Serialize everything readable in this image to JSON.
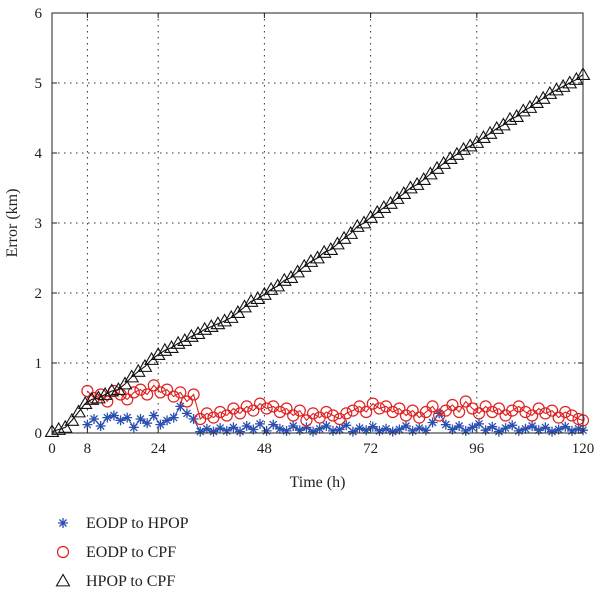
{
  "chart_data": {
    "type": "line",
    "title": "",
    "xlabel": "Time (h)",
    "ylabel": "Error (km)",
    "xlim": [
      0,
      120
    ],
    "ylim": [
      0,
      6
    ],
    "xticks": [
      0,
      8,
      24,
      48,
      72,
      96,
      120
    ],
    "yticks": [
      0,
      1,
      2,
      3,
      4,
      5,
      6
    ],
    "grid": true,
    "legend_placement": "below-left",
    "series": [
      {
        "name": "EODP to HPOP",
        "color": "#2b4fb0",
        "marker": "asterisk",
        "x": [
          8,
          9.5,
          11,
          12.5,
          14,
          15.5,
          17,
          18.5,
          20,
          21.5,
          23,
          24.5,
          26,
          27.5,
          29,
          30.5,
          32,
          33.5,
          35,
          36.5,
          38,
          39.5,
          41,
          42.5,
          44,
          45.5,
          47,
          48.5,
          50,
          51.5,
          53,
          54.5,
          56,
          57.5,
          59,
          60.5,
          62,
          63.5,
          65,
          66.5,
          68,
          69.5,
          71,
          72.5,
          74,
          75.5,
          77,
          78.5,
          80,
          81.5,
          83,
          84.5,
          86,
          87.5,
          89,
          90.5,
          92,
          93.5,
          95,
          96.5,
          98,
          99.5,
          101,
          102.5,
          104,
          105.5,
          107,
          108.5,
          110,
          111.5,
          113,
          114.5,
          116,
          117.5,
          119,
          120
        ],
        "y": [
          0.12,
          0.2,
          0.1,
          0.22,
          0.25,
          0.18,
          0.22,
          0.08,
          0.2,
          0.14,
          0.25,
          0.12,
          0.18,
          0.22,
          0.38,
          0.28,
          0.2,
          0.02,
          0.06,
          0.02,
          0.07,
          0.03,
          0.08,
          0.02,
          0.1,
          0.05,
          0.13,
          0.03,
          0.12,
          0.06,
          0.03,
          0.1,
          0.04,
          0.08,
          0.02,
          0.06,
          0.1,
          0.03,
          0.05,
          0.11,
          0.02,
          0.07,
          0.04,
          0.09,
          0.03,
          0.06,
          0.02,
          0.05,
          0.1,
          0.03,
          0.07,
          0.04,
          0.15,
          0.28,
          0.12,
          0.05,
          0.1,
          0.03,
          0.08,
          0.13,
          0.04,
          0.09,
          0.02,
          0.07,
          0.11,
          0.03,
          0.06,
          0.1,
          0.04,
          0.08,
          0.02,
          0.05,
          0.09,
          0.03,
          0.06,
          0.04
        ]
      },
      {
        "name": "EODP to CPF",
        "color": "#e02020",
        "marker": "circle",
        "x": [
          8,
          9.5,
          11,
          12.5,
          14,
          15.5,
          17,
          18.5,
          20,
          21.5,
          23,
          24.5,
          26,
          27.5,
          29,
          30.5,
          32,
          33.5,
          35,
          36.5,
          38,
          39.5,
          41,
          42.5,
          44,
          45.5,
          47,
          48.5,
          50,
          51.5,
          53,
          54.5,
          56,
          57.5,
          59,
          60.5,
          62,
          63.5,
          65,
          66.5,
          68,
          69.5,
          71,
          72.5,
          74,
          75.5,
          77,
          78.5,
          80,
          81.5,
          83,
          84.5,
          86,
          87.5,
          89,
          90.5,
          92,
          93.5,
          95,
          96.5,
          98,
          99.5,
          101,
          102.5,
          104,
          105.5,
          107,
          108.5,
          110,
          111.5,
          113,
          114.5,
          116,
          117.5,
          119,
          120
        ],
        "y": [
          0.6,
          0.5,
          0.55,
          0.45,
          0.6,
          0.55,
          0.48,
          0.58,
          0.62,
          0.55,
          0.68,
          0.58,
          0.62,
          0.52,
          0.58,
          0.45,
          0.55,
          0.2,
          0.28,
          0.22,
          0.3,
          0.25,
          0.35,
          0.28,
          0.38,
          0.32,
          0.42,
          0.35,
          0.38,
          0.3,
          0.35,
          0.25,
          0.32,
          0.18,
          0.28,
          0.22,
          0.3,
          0.25,
          0.2,
          0.28,
          0.32,
          0.38,
          0.3,
          0.42,
          0.35,
          0.38,
          0.3,
          0.35,
          0.25,
          0.32,
          0.22,
          0.3,
          0.38,
          0.25,
          0.32,
          0.4,
          0.3,
          0.45,
          0.35,
          0.28,
          0.38,
          0.3,
          0.35,
          0.25,
          0.32,
          0.38,
          0.3,
          0.25,
          0.35,
          0.28,
          0.32,
          0.22,
          0.3,
          0.25,
          0.2,
          0.18
        ]
      },
      {
        "name": "HPOP to CPF",
        "color": "#111111",
        "marker": "triangle",
        "x": [
          0,
          1.5,
          3,
          4.5,
          6,
          7.5,
          9,
          10.5,
          12,
          13.5,
          15,
          16.5,
          18,
          19.5,
          21,
          22.5,
          24,
          25.5,
          27,
          28.5,
          30,
          31.5,
          33,
          34.5,
          36,
          37.5,
          39,
          40.5,
          42,
          43.5,
          45,
          46.5,
          48,
          49.5,
          51,
          52.5,
          54,
          55.5,
          57,
          58.5,
          60,
          61.5,
          63,
          64.5,
          66,
          67.5,
          69,
          70.5,
          72,
          73.5,
          75,
          76.5,
          78,
          79.5,
          81,
          82.5,
          84,
          85.5,
          87,
          88.5,
          90,
          91.5,
          93,
          94.5,
          96,
          97.5,
          99,
          100.5,
          102,
          103.5,
          105,
          106.5,
          108,
          109.5,
          111,
          112.5,
          114,
          115.5,
          117,
          118.5,
          120
        ],
        "y": [
          0.02,
          0.05,
          0.08,
          0.18,
          0.3,
          0.42,
          0.48,
          0.5,
          0.55,
          0.6,
          0.62,
          0.7,
          0.8,
          0.88,
          0.95,
          1.05,
          1.12,
          1.18,
          1.22,
          1.28,
          1.32,
          1.38,
          1.42,
          1.48,
          1.52,
          1.56,
          1.6,
          1.65,
          1.72,
          1.8,
          1.88,
          1.92,
          1.98,
          2.05,
          2.1,
          2.18,
          2.22,
          2.3,
          2.38,
          2.45,
          2.5,
          2.58,
          2.62,
          2.7,
          2.78,
          2.85,
          2.95,
          3.0,
          3.08,
          3.15,
          3.22,
          3.28,
          3.35,
          3.42,
          3.5,
          3.55,
          3.62,
          3.7,
          3.78,
          3.85,
          3.92,
          3.98,
          4.05,
          4.1,
          4.15,
          4.22,
          4.28,
          4.35,
          4.4,
          4.48,
          4.52,
          4.6,
          4.65,
          4.72,
          4.78,
          4.85,
          4.9,
          4.95,
          5.0,
          5.05,
          5.12
        ]
      }
    ]
  }
}
